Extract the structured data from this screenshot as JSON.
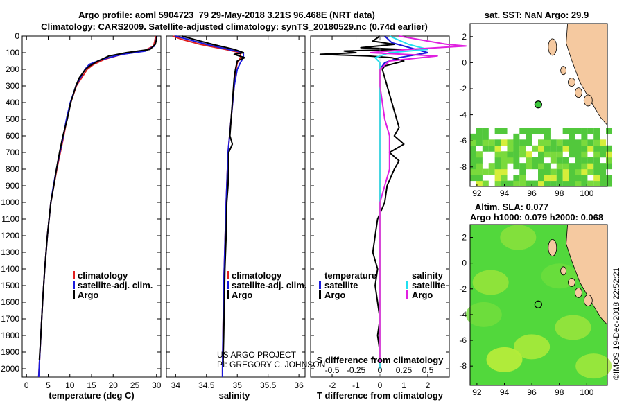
{
  "header": {
    "title_line1": "Argo profile: aoml 5904723_79 29-May-2018 3.21S 96.468E (NRT data)",
    "title_line2": "Climatology: CARS2009. Satellite-adjusted climatology: synTS_20180529.nc (0.74d earlier)"
  },
  "colors": {
    "climatology": "#e02020",
    "satellite": "#1a1adc",
    "argo": "#000000",
    "salinity_sat": "#20e0f0",
    "salinity_argo": "#e020e0",
    "ocean_sst": "#3cc83c",
    "land": "#f5c9a0"
  },
  "chart_data": [
    {
      "type": "line",
      "id": "temperature",
      "xlabel": "temperature (deg C)",
      "xlim": [
        -1,
        31
      ],
      "xticks": [
        "0",
        "5",
        "10",
        "15",
        "20",
        "25",
        "30"
      ],
      "ylim": [
        0,
        2050
      ],
      "yticks": [
        "0",
        "100",
        "200",
        "300",
        "400",
        "500",
        "600",
        "700",
        "800",
        "900",
        "1000",
        "1100",
        "1200",
        "1300",
        "1400",
        "1500",
        "1600",
        "1700",
        "1800",
        "1900",
        "2000"
      ],
      "legend": [
        "climatology",
        "satellite-adj. clim.",
        "Argo"
      ],
      "series": [
        {
          "name": "climatology",
          "depth": [
            0,
            30,
            60,
            90,
            110,
            140,
            170,
            200,
            300,
            400,
            500,
            600,
            700,
            800,
            900,
            1000,
            1200,
            1400,
            1600,
            1800,
            2000,
            2050
          ],
          "values": [
            29.8,
            29.6,
            29.3,
            27,
            22,
            18,
            15.5,
            14,
            11.5,
            10.2,
            9.3,
            8.6,
            7.8,
            7,
            6.3,
            5.6,
            4.8,
            4.2,
            3.7,
            3.3,
            2.9,
            2.8
          ]
        },
        {
          "name": "satellite-adj. clim.",
          "depth": [
            0,
            30,
            60,
            90,
            110,
            140,
            170,
            200,
            300,
            400,
            500,
            600,
            700,
            800,
            900,
            1000,
            1200,
            1400,
            1600,
            1800,
            2000,
            2050
          ],
          "values": [
            30.1,
            29.9,
            29.5,
            27.5,
            22,
            17.5,
            14.5,
            13.5,
            11.4,
            10.1,
            9.2,
            8.5,
            7.7,
            6.9,
            6.2,
            5.6,
            4.8,
            4.2,
            3.7,
            3.3,
            2.9,
            2.8
          ]
        },
        {
          "name": "Argo",
          "depth": [
            0,
            20,
            50,
            80,
            100,
            120,
            150,
            180,
            200,
            250,
            300,
            400,
            500,
            600,
            650,
            700,
            800,
            900,
            1000,
            1200,
            1400,
            1600,
            1800,
            1950
          ],
          "values": [
            30.0,
            30.0,
            29.7,
            28.5,
            23,
            19,
            16.5,
            14.5,
            13.6,
            12.2,
            11.4,
            10.2,
            9.4,
            8.4,
            8.0,
            7.6,
            6.9,
            6.3,
            5.6,
            4.8,
            4.2,
            3.7,
            3.3,
            2.95
          ]
        }
      ]
    },
    {
      "type": "line",
      "id": "salinity",
      "xlabel": "salinity",
      "xlim": [
        33.85,
        36.1
      ],
      "xticks": [
        "34",
        "34.5",
        "35",
        "35.5",
        "36"
      ],
      "ylim": [
        0,
        2050
      ],
      "legend": [
        "climatology",
        "satellite-adj. clim.",
        "Argo"
      ],
      "series": [
        {
          "name": "climatology",
          "depth": [
            0,
            20,
            50,
            80,
            100,
            130,
            160,
            200,
            300,
            500,
            700,
            1000,
            1500,
            2000,
            2050
          ],
          "values": [
            33.95,
            34.1,
            34.4,
            34.8,
            35.05,
            35.05,
            35.0,
            34.98,
            34.95,
            34.9,
            34.85,
            34.82,
            34.78,
            34.76,
            34.76
          ]
        },
        {
          "name": "satellite-adj. clim.",
          "depth": [
            0,
            20,
            50,
            80,
            100,
            130,
            160,
            200,
            300,
            500,
            700,
            1000,
            1500,
            2000,
            2050
          ],
          "values": [
            34.0,
            34.2,
            34.5,
            34.85,
            35.1,
            35.1,
            35.05,
            35.0,
            34.95,
            34.9,
            34.85,
            34.82,
            34.78,
            34.76,
            34.76
          ]
        },
        {
          "name": "Argo",
          "depth": [
            0,
            20,
            50,
            80,
            100,
            110,
            130,
            150,
            200,
            250,
            300,
            400,
            500,
            600,
            650,
            700,
            800,
            900,
            1000,
            1200,
            1400,
            1600,
            1800,
            1960
          ],
          "values": [
            34.1,
            34.3,
            34.6,
            34.95,
            35.1,
            34.95,
            35.12,
            35.0,
            34.97,
            34.95,
            34.94,
            34.92,
            34.9,
            34.88,
            34.92,
            34.86,
            34.86,
            34.85,
            34.83,
            34.82,
            34.8,
            34.79,
            34.78,
            34.77
          ]
        }
      ],
      "credit_line1": "US ARGO PROJECT",
      "credit_line2": "PI: GREGORY C. JOHNSON"
    },
    {
      "type": "line",
      "id": "difference",
      "xlabel": "T difference from climatology",
      "xlabel_top": "S difference from climatology",
      "xlim": [
        -2.9,
        2.9
      ],
      "xticks": [
        "-2",
        "-1",
        "0",
        "1",
        "2"
      ],
      "xticks_top": [
        "-0.5",
        "-0.25",
        "0",
        "0.25",
        "0.5"
      ],
      "ylim": [
        0,
        2050
      ],
      "legend_temperature": {
        "title": "temperature",
        "items": [
          "satellite",
          "Argo"
        ]
      },
      "legend_salinity": {
        "title": "salinity",
        "items": [
          "satellite",
          "Argo"
        ]
      },
      "series": [
        {
          "name": "T satellite",
          "depth": [
            0,
            40,
            60,
            80,
            100,
            110,
            130,
            160,
            200,
            300,
            500,
            700,
            1000,
            1500,
            2000
          ],
          "values": [
            0.2,
            0.5,
            1.0,
            1.5,
            2.0,
            1.6,
            0.8,
            0.2,
            0.0,
            0.0,
            0.0,
            0.0,
            0.0,
            0.0,
            0.0
          ]
        },
        {
          "name": "T Argo",
          "depth": [
            0,
            30,
            50,
            70,
            80,
            90,
            100,
            110,
            120,
            130,
            150,
            180,
            200,
            250,
            300,
            400,
            500,
            550,
            600,
            650,
            700,
            750,
            800,
            900,
            1000,
            1100,
            1200,
            1300,
            1400,
            1500,
            1600,
            1700,
            1800,
            1900,
            1960
          ],
          "values": [
            0,
            -0.3,
            0.6,
            -0.8,
            0.9,
            -1.5,
            -1.0,
            -2.5,
            -0.5,
            0.5,
            1.0,
            0.2,
            0.1,
            0.2,
            0.3,
            0.5,
            0.7,
            0.8,
            0.6,
            1.0,
            0.4,
            0.8,
            0.6,
            0.3,
            0.2,
            -0.1,
            -0.2,
            -0.3,
            -0.1,
            -0.2,
            -0.1,
            0,
            -0.1,
            0,
            0
          ]
        },
        {
          "name": "S satellite",
          "depth": [
            0,
            50,
            80,
            100,
            130,
            160,
            200,
            300,
            500,
            800,
            1200,
            1600,
            2000
          ],
          "values": [
            0.1,
            0.3,
            0.5,
            0.1,
            -0.05,
            0.0,
            0.0,
            0.0,
            0.0,
            0.0,
            0.0,
            0.0,
            0.0
          ]
        },
        {
          "name": "S Argo",
          "depth": [
            0,
            50,
            60,
            80,
            100,
            120,
            150,
            200,
            300,
            500,
            600,
            700,
            800,
            900,
            1000,
            1400,
            1960
          ],
          "values": [
            0.2,
            0.7,
            0.9,
            0.3,
            -0.1,
            0.6,
            0.1,
            0.0,
            0.0,
            0.05,
            0.1,
            0.1,
            0.1,
            0.05,
            0.0,
            0.0,
            0.0
          ]
        }
      ]
    },
    {
      "type": "heatmap",
      "id": "sst_map",
      "title": "sat. SST: NaN Argo: 29.9",
      "xlim": [
        91.5,
        101.5
      ],
      "ylim": [
        -9.5,
        3
      ],
      "xticks": [
        "92",
        "94",
        "96",
        "98",
        "100"
      ],
      "yticks": [
        "2",
        "0",
        "-2",
        "-4",
        "-6",
        "-8"
      ],
      "argo_position": [
        96.468,
        -3.21
      ]
    },
    {
      "type": "heatmap",
      "id": "sla_map",
      "title_line1": "Altim. SLA: 0.077",
      "title_line2": "Argo h1000: 0.079 h2000: 0.068",
      "xlim": [
        91.5,
        101.5
      ],
      "ylim": [
        -9.5,
        3
      ],
      "xticks": [
        "92",
        "94",
        "96",
        "98",
        "100"
      ],
      "yticks": [
        "2",
        "0",
        "-2",
        "-4",
        "-6",
        "-8"
      ],
      "argo_position": [
        96.468,
        -3.21
      ]
    }
  ],
  "footer": {
    "stamp": "©IMOS 19-Dec-2018 22:52:21"
  }
}
